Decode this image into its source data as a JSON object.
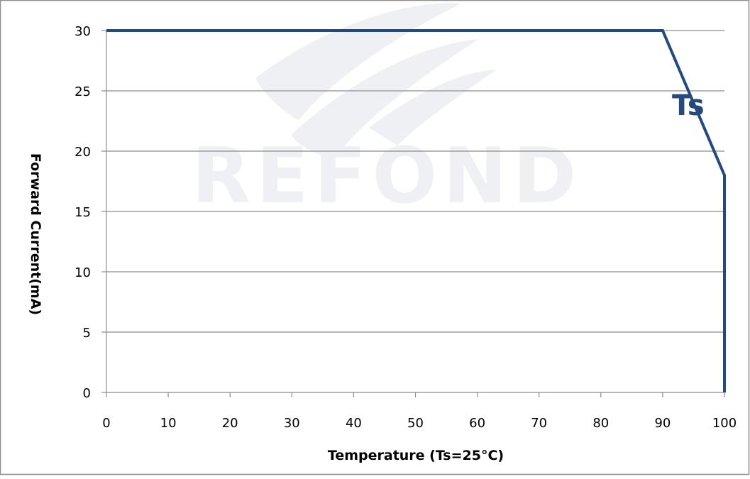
{
  "chart_data": {
    "type": "line",
    "title": "",
    "xlabel": "Temperature (Ts=25°C)",
    "ylabel": "Forward Current(mA)",
    "xlim": [
      0,
      100
    ],
    "ylim": [
      0,
      30
    ],
    "x_ticks": [
      0,
      10,
      20,
      30,
      40,
      50,
      60,
      70,
      80,
      90,
      100
    ],
    "y_ticks": [
      0,
      5,
      10,
      15,
      20,
      25,
      30
    ],
    "grid": "horizontal",
    "series": [
      {
        "name": "Ts",
        "color": "#24497c",
        "points": [
          {
            "x": 0,
            "y": 30
          },
          {
            "x": 90,
            "y": 30
          },
          {
            "x": 100,
            "y": 18
          },
          {
            "x": 100,
            "y": 0
          }
        ]
      }
    ],
    "annotations": [
      {
        "text": "Ts",
        "x": 91.5,
        "y": 23,
        "color": "#24497c"
      }
    ]
  },
  "watermark": {
    "text": "REFOND",
    "color": "#eef0f4"
  }
}
